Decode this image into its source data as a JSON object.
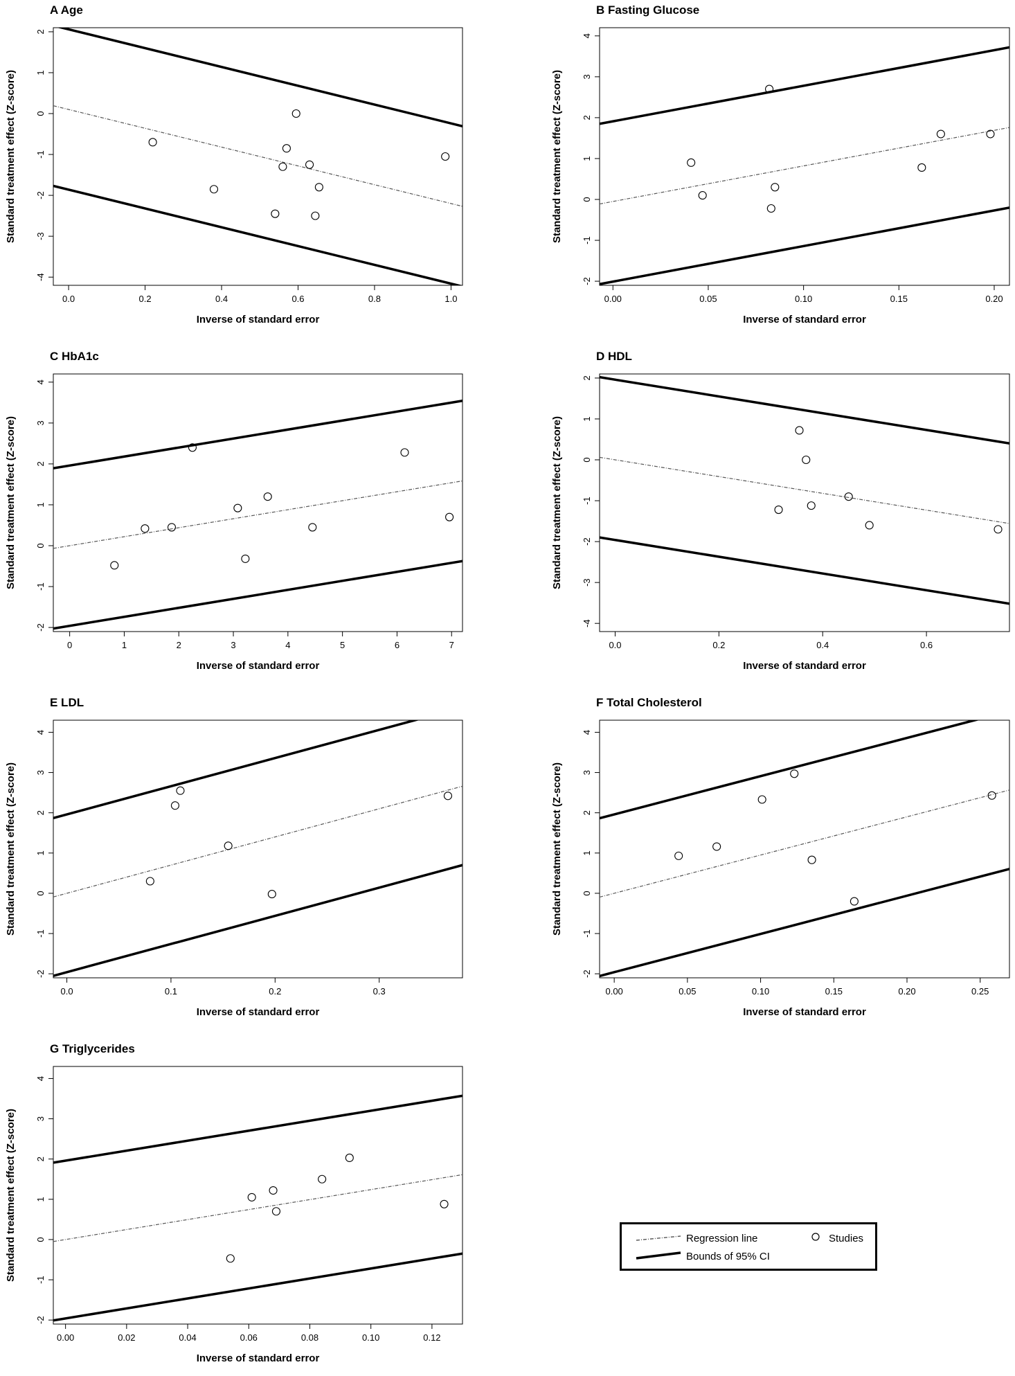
{
  "chart_data": [
    {
      "type": "scatter",
      "panel": "A",
      "title": "A  Age",
      "xlabel": "Inverse of standard error",
      "ylabel": "Standard treatment effect (Z-score)",
      "xlim": [
        -0.04,
        1.03
      ],
      "ylim": [
        -4.2,
        2.1
      ],
      "xticks": [
        "0.0",
        "0.2",
        "0.4",
        "0.6",
        "0.8",
        "1.0"
      ],
      "yticks": [
        "-4",
        "-3",
        "-2",
        "-1",
        "0",
        "1",
        "2"
      ],
      "x_tick_values": [
        0,
        0.2,
        0.4,
        0.6,
        0.8,
        1.0
      ],
      "y_tick_values": [
        -4,
        -3,
        -2,
        -1,
        0,
        1,
        2
      ],
      "points": [
        [
          0.22,
          -0.7
        ],
        [
          0.38,
          -1.85
        ],
        [
          0.54,
          -2.45
        ],
        [
          0.56,
          -1.3
        ],
        [
          0.57,
          -0.85
        ],
        [
          0.595,
          0.0
        ],
        [
          0.63,
          -1.25
        ],
        [
          0.645,
          -2.5
        ],
        [
          0.655,
          -1.8
        ],
        [
          0.985,
          -1.05
        ]
      ],
      "regression": {
        "intercept": 0.1,
        "slope": -2.3
      },
      "ci_half_width": 1.96
    },
    {
      "type": "scatter",
      "panel": "B",
      "title": "B  Fasting Glucose",
      "xlabel": "Inverse of standard error",
      "ylabel": "Standard treatment effect (Z-score)",
      "xlim": [
        -0.007,
        0.208
      ],
      "ylim": [
        -2.1,
        4.2
      ],
      "xticks": [
        "0.00",
        "0.05",
        "0.10",
        "0.15",
        "0.20"
      ],
      "yticks": [
        "-2",
        "-1",
        "0",
        "1",
        "2",
        "3",
        "4"
      ],
      "x_tick_values": [
        0,
        0.05,
        0.1,
        0.15,
        0.2
      ],
      "y_tick_values": [
        -2,
        -1,
        0,
        1,
        2,
        3,
        4
      ],
      "points": [
        [
          0.041,
          0.9
        ],
        [
          0.047,
          0.1
        ],
        [
          0.082,
          2.7
        ],
        [
          0.083,
          -0.22
        ],
        [
          0.085,
          0.3
        ],
        [
          0.162,
          0.78
        ],
        [
          0.172,
          1.6
        ],
        [
          0.198,
          1.6
        ]
      ],
      "regression": {
        "intercept": -0.05,
        "slope": 8.7
      },
      "ci_half_width": 1.96
    },
    {
      "type": "scatter",
      "panel": "C",
      "title": "C  HbA1c",
      "xlabel": "Inverse of standard error",
      "ylabel": "Standard treatment effect (Z-score)",
      "xlim": [
        -0.3,
        7.2
      ],
      "ylim": [
        -2.1,
        4.2
      ],
      "xticks": [
        "0",
        "1",
        "2",
        "3",
        "4",
        "5",
        "6",
        "7"
      ],
      "yticks": [
        "-2",
        "-1",
        "0",
        "1",
        "2",
        "3",
        "4"
      ],
      "x_tick_values": [
        0,
        1,
        2,
        3,
        4,
        5,
        6,
        7
      ],
      "y_tick_values": [
        -2,
        -1,
        0,
        1,
        2,
        3,
        4
      ],
      "points": [
        [
          0.82,
          -0.48
        ],
        [
          1.38,
          0.42
        ],
        [
          1.87,
          0.45
        ],
        [
          2.25,
          2.4
        ],
        [
          3.08,
          0.92
        ],
        [
          3.22,
          -0.32
        ],
        [
          3.63,
          1.2
        ],
        [
          4.45,
          0.45
        ],
        [
          6.14,
          2.28
        ],
        [
          6.96,
          0.7
        ]
      ],
      "regression": {
        "intercept": 0.0,
        "slope": 0.22
      },
      "ci_half_width": 1.96
    },
    {
      "type": "scatter",
      "panel": "D",
      "title": "D  HDL",
      "xlabel": "Inverse of standard error",
      "ylabel": "Standard treatment effect (Z-score)",
      "xlim": [
        -0.03,
        0.76
      ],
      "ylim": [
        -4.2,
        2.1
      ],
      "xticks": [
        "0.0",
        "0.2",
        "0.4",
        "0.6"
      ],
      "yticks": [
        "-4",
        "-3",
        "-2",
        "-1",
        "0",
        "1",
        "2"
      ],
      "x_tick_values": [
        0,
        0.2,
        0.4,
        0.6
      ],
      "y_tick_values": [
        -4,
        -3,
        -2,
        -1,
        0,
        1,
        2
      ],
      "points": [
        [
          0.315,
          -1.22
        ],
        [
          0.355,
          0.72
        ],
        [
          0.368,
          0.0
        ],
        [
          0.378,
          -1.12
        ],
        [
          0.45,
          -0.9
        ],
        [
          0.49,
          -1.6
        ],
        [
          0.738,
          -1.7
        ]
      ],
      "regression": {
        "intercept": 0.0,
        "slope": -2.05
      },
      "ci_half_width": 1.96
    },
    {
      "type": "scatter",
      "panel": "E",
      "title": "E  LDL",
      "xlabel": "Inverse of standard error",
      "ylabel": "Standard treatment effect (Z-score)",
      "xlim": [
        -0.013,
        0.38
      ],
      "ylim": [
        -2.1,
        4.3
      ],
      "xticks": [
        "0.0",
        "0.1",
        "0.2",
        "0.3"
      ],
      "yticks": [
        "-2",
        "-1",
        "0",
        "1",
        "2",
        "3",
        "4"
      ],
      "x_tick_values": [
        0,
        0.1,
        0.2,
        0.3
      ],
      "y_tick_values": [
        -2,
        -1,
        0,
        1,
        2,
        3,
        4
      ],
      "points": [
        [
          0.08,
          0.3
        ],
        [
          0.104,
          2.18
        ],
        [
          0.109,
          2.55
        ],
        [
          0.155,
          1.18
        ],
        [
          0.197,
          -0.02
        ],
        [
          0.366,
          2.42
        ]
      ],
      "regression": {
        "intercept": 0.0,
        "slope": 7.0
      },
      "ci_half_width": 1.96
    },
    {
      "type": "scatter",
      "panel": "F",
      "title": "F  Total Cholesterol",
      "xlabel": "Inverse of standard error",
      "ylabel": "Standard treatment effect (Z-score)",
      "xlim": [
        -0.01,
        0.27
      ],
      "ylim": [
        -2.1,
        4.3
      ],
      "xticks": [
        "0.00",
        "0.05",
        "0.10",
        "0.15",
        "0.20",
        "0.25"
      ],
      "yticks": [
        "-2",
        "-1",
        "0",
        "1",
        "2",
        "3",
        "4"
      ],
      "x_tick_values": [
        0,
        0.05,
        0.1,
        0.15,
        0.2,
        0.25
      ],
      "y_tick_values": [
        -2,
        -1,
        0,
        1,
        2,
        3,
        4
      ],
      "points": [
        [
          0.044,
          0.93
        ],
        [
          0.07,
          1.16
        ],
        [
          0.101,
          2.33
        ],
        [
          0.123,
          2.97
        ],
        [
          0.135,
          0.83
        ],
        [
          0.164,
          -0.2
        ],
        [
          0.258,
          2.43
        ]
      ],
      "regression": {
        "intercept": 0.0,
        "slope": 9.5
      },
      "ci_half_width": 1.96
    },
    {
      "type": "scatter",
      "panel": "G",
      "title": "G  Triglycerides",
      "xlabel": "Inverse of standard error",
      "ylabel": "Standard treatment effect (Z-score)",
      "xlim": [
        -0.004,
        0.13
      ],
      "ylim": [
        -2.1,
        4.3
      ],
      "xticks": [
        "0.00",
        "0.02",
        "0.04",
        "0.06",
        "0.08",
        "0.10",
        "0.12"
      ],
      "yticks": [
        "-2",
        "-1",
        "0",
        "1",
        "2",
        "3",
        "4"
      ],
      "x_tick_values": [
        0,
        0.02,
        0.04,
        0.06,
        0.08,
        0.1,
        0.12
      ],
      "y_tick_values": [
        -2,
        -1,
        0,
        1,
        2,
        3,
        4
      ],
      "points": [
        [
          0.054,
          -0.47
        ],
        [
          0.061,
          1.05
        ],
        [
          0.068,
          1.22
        ],
        [
          0.069,
          0.7
        ],
        [
          0.084,
          1.5
        ],
        [
          0.093,
          2.03
        ],
        [
          0.124,
          0.88
        ]
      ],
      "regression": {
        "intercept": 0.0,
        "slope": 12.4
      },
      "ci_half_width": 1.96
    }
  ],
  "legend": {
    "regression_label": "Regression line",
    "studies_label": "Studies",
    "bounds_label": "Bounds of 95% CI"
  }
}
